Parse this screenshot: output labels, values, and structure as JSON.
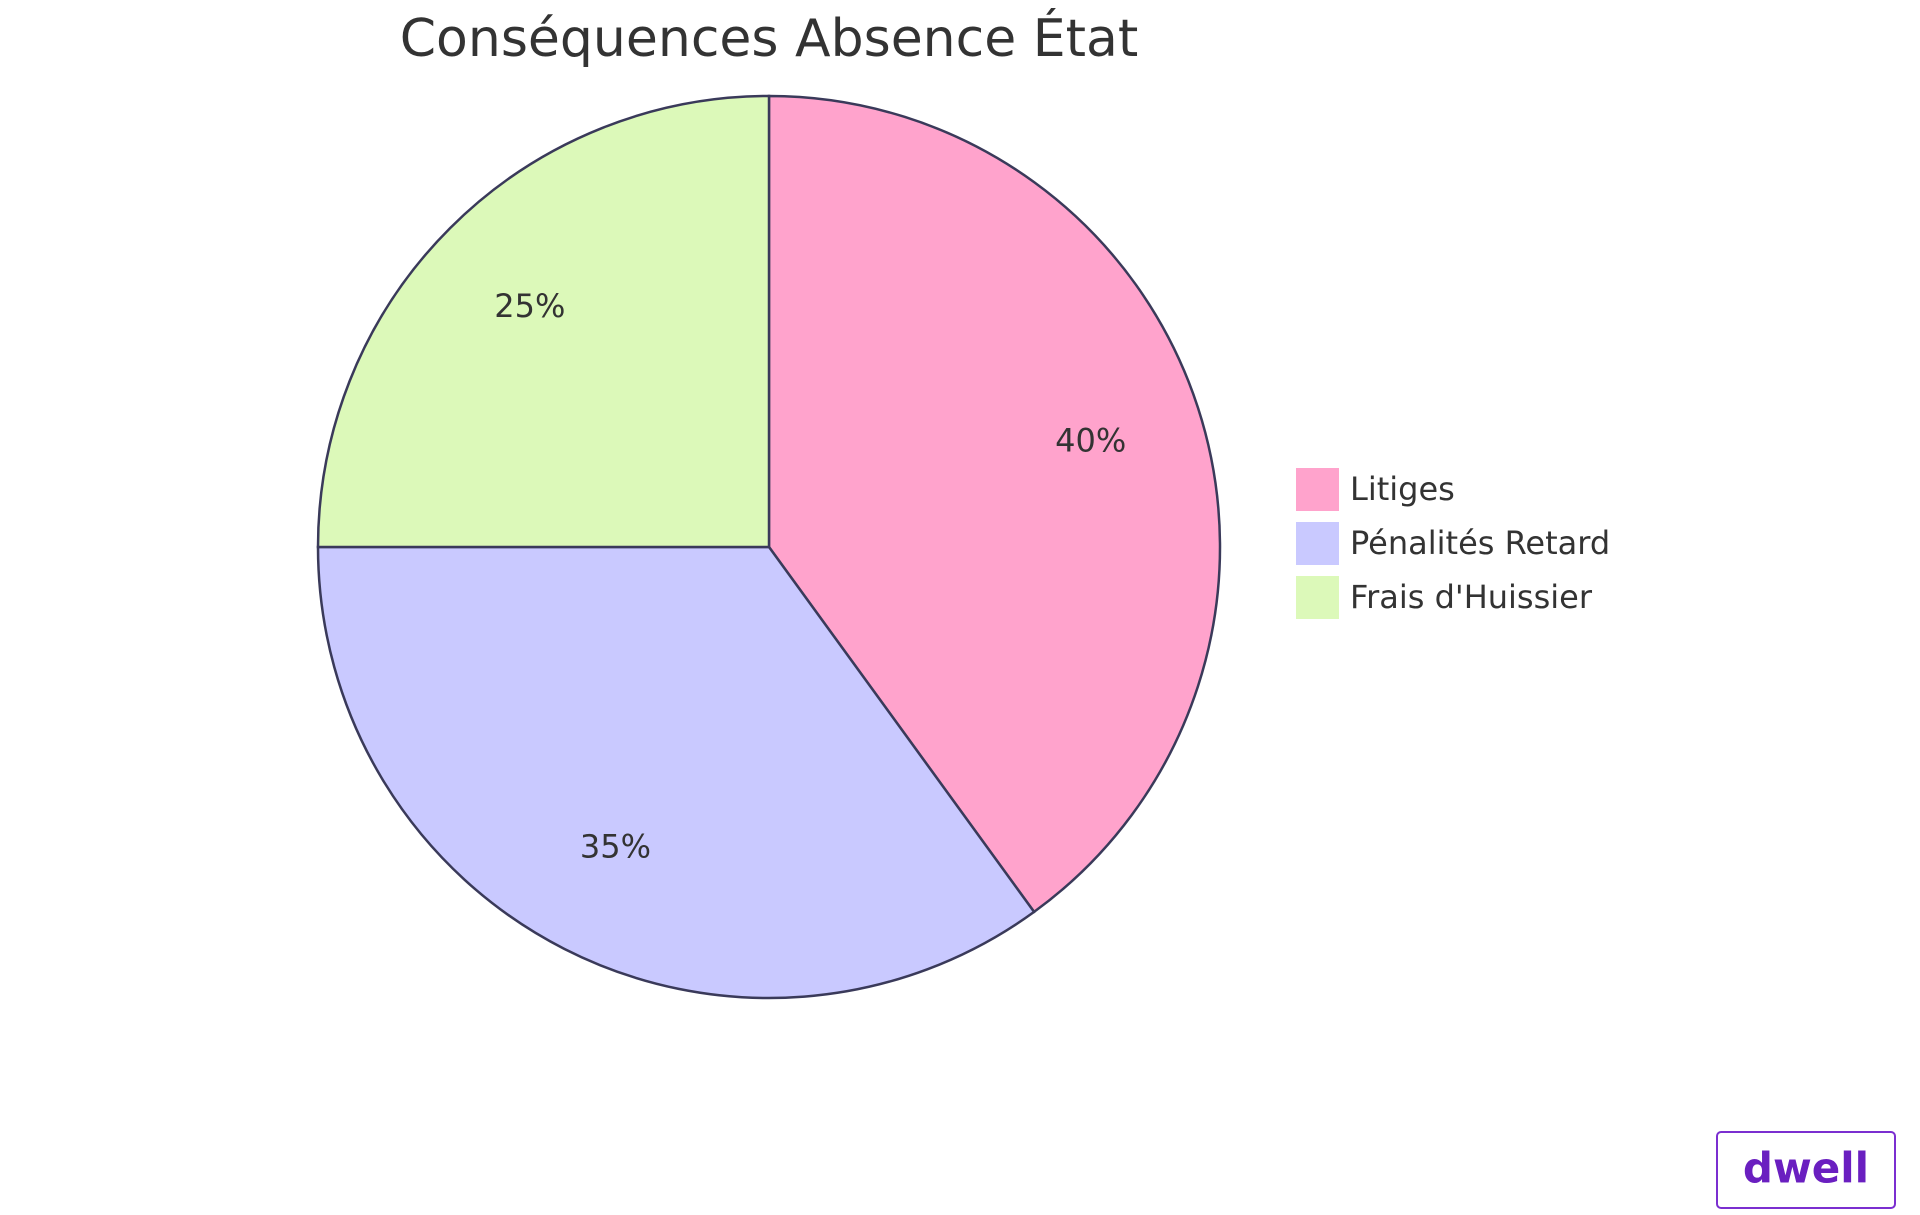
{
  "chart_data": {
    "type": "pie",
    "title": "Conséquences Absence État",
    "categories": [
      "Litiges",
      "Pénalités Retard",
      "Frais d'Huissier"
    ],
    "values": [
      40,
      35,
      25
    ],
    "value_labels": [
      "40%",
      "35%",
      "25%"
    ],
    "colors": [
      "#ffa3cc",
      "#c9c9ff",
      "#dcf9b9"
    ],
    "legend": "right"
  },
  "watermark": "dwell"
}
